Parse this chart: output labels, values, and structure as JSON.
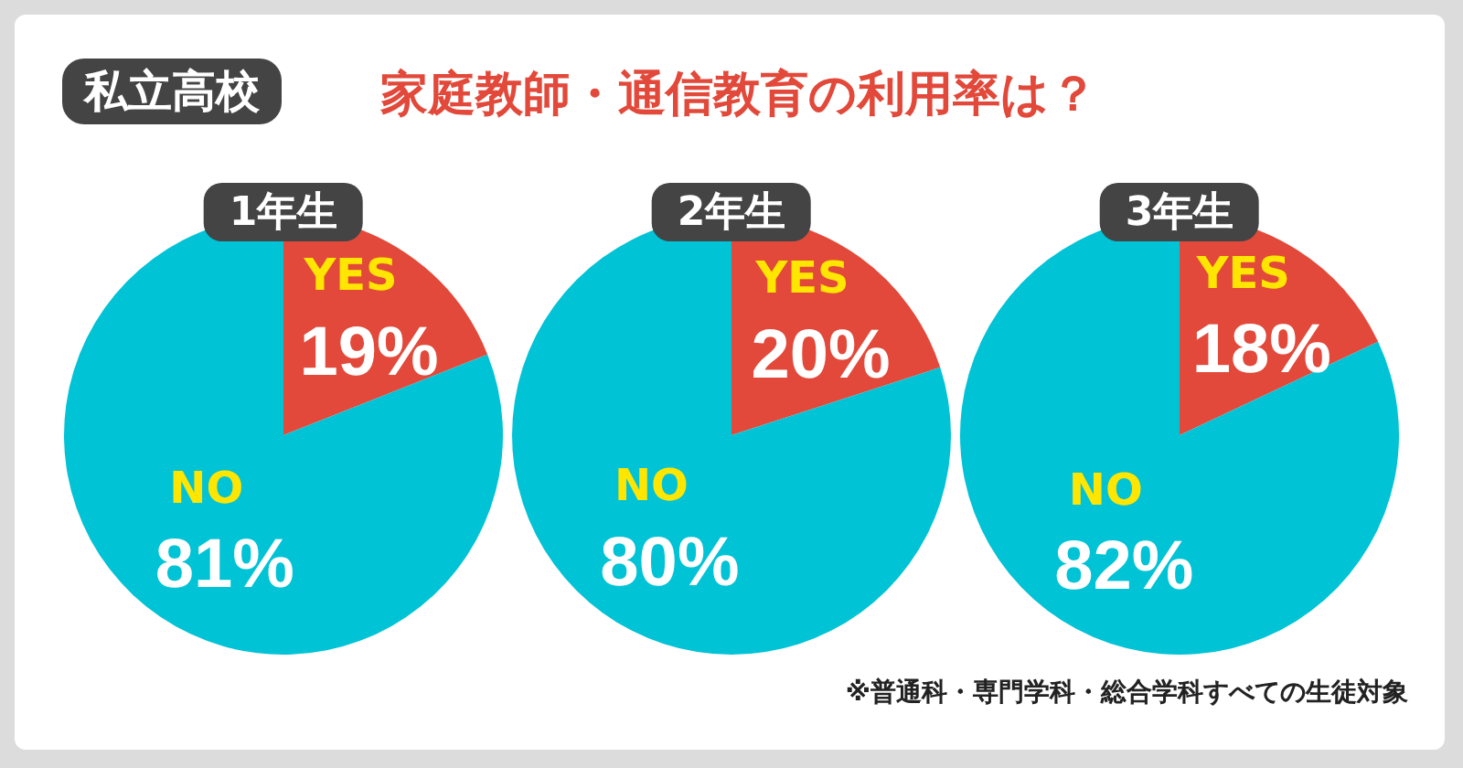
{
  "chart_data": [
    {
      "type": "other",
      "title": "私立高校",
      "subtitle": "家庭教師・通信教育の利用率は？",
      "annotations": [
        "※普通科・専門学科・総合学科すべての生徒対象"
      ]
    },
    {
      "type": "pie",
      "title": "1年生",
      "categories": [
        "YES",
        "NO"
      ],
      "values": [
        19,
        81
      ],
      "colors": [
        "#e2493a",
        "#00c3d6"
      ],
      "value_labels": [
        "19%",
        "81%"
      ]
    },
    {
      "type": "pie",
      "title": "2年生",
      "categories": [
        "YES",
        "NO"
      ],
      "values": [
        20,
        80
      ],
      "colors": [
        "#e2493a",
        "#00c3d6"
      ],
      "value_labels": [
        "20%",
        "80%"
      ]
    },
    {
      "type": "pie",
      "title": "3年生",
      "categories": [
        "YES",
        "NO"
      ],
      "values": [
        18,
        82
      ],
      "colors": [
        "#e2493a",
        "#00c3d6"
      ],
      "value_labels": [
        "18%",
        "82%"
      ]
    }
  ]
}
